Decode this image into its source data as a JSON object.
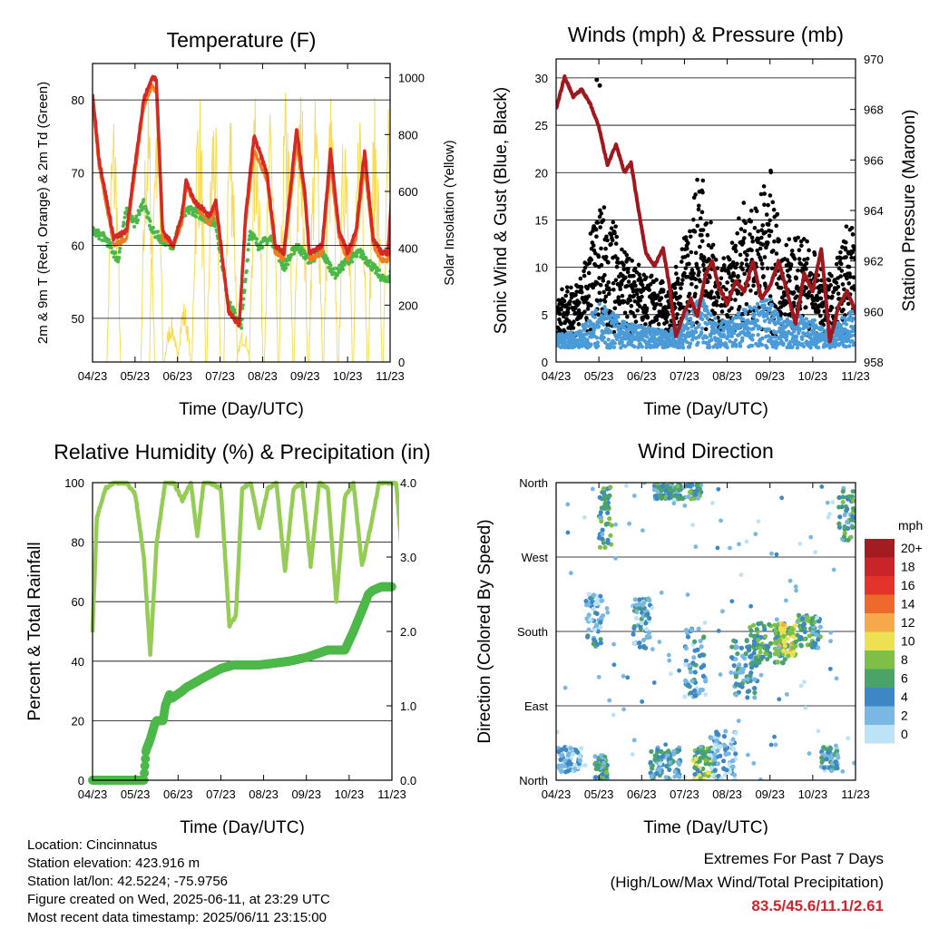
{
  "time_ticks": [
    "04/23",
    "05/23",
    "06/23",
    "07/23",
    "08/23",
    "09/23",
    "10/23",
    "11/23"
  ],
  "time_xlabel": "Time (Day/UTC)",
  "colors": {
    "temp_red": "#d42a26",
    "temp_orange": "#f47c20",
    "dewpoint_green": "#4cb848",
    "solar_yellow": "#f5dc5a",
    "wind_black": "#000000",
    "wind_blue": "#4a9bd8",
    "pressure_maroon": "#a0171e",
    "rh_green": "#95cc55",
    "precip_green": "#4cb848",
    "extremes_red": "#c8282d"
  },
  "chart_data": [
    {
      "id": "temperature",
      "type": "line",
      "title": "Temperature (F)",
      "xlabel": "Time (Day/UTC)",
      "ylabel": "2m & 9m T (Red, Orange) & 2m Td (Green)",
      "y2label": "Solar Insolation (Yellow)",
      "ylim": [
        44,
        85
      ],
      "yticks": [
        50,
        60,
        70,
        80
      ],
      "y2lim": [
        0,
        1050
      ],
      "y2ticks": [
        0,
        200,
        400,
        600,
        800,
        1000
      ],
      "grid": "horizontal",
      "series": [
        {
          "key": "t2m",
          "color": "#d42a26",
          "x": [
            0,
            0.15,
            0.5,
            0.8,
            1.2,
            1.4,
            1.5,
            1.65,
            1.9,
            2.1,
            2.2,
            2.4,
            2.6,
            2.75,
            2.9,
            3.2,
            3.45,
            3.6,
            3.8,
            4.1,
            4.3,
            4.5,
            4.8,
            5.0,
            5.1,
            5.4,
            5.6,
            5.8,
            6.0,
            6.2,
            6.4,
            6.6,
            6.8,
            6.95,
            7.1,
            7.3,
            7.4,
            7.6,
            7.7,
            7.8,
            8.0
          ],
          "y": [
            81,
            72,
            61,
            62,
            80,
            83,
            83,
            62,
            60,
            64,
            69,
            66,
            65,
            64,
            66,
            51,
            49,
            64,
            75,
            70,
            60,
            59,
            76,
            67,
            59,
            60,
            73,
            62,
            59,
            62,
            73,
            61,
            59,
            59,
            73,
            63,
            54,
            46,
            47,
            76,
            74
          ]
        },
        {
          "key": "t9m",
          "color": "#f47c20",
          "x": [
            0,
            0.15,
            0.5,
            0.8,
            1.2,
            1.4,
            1.5,
            1.65,
            1.9,
            2.1,
            2.2,
            2.4,
            2.6,
            2.75,
            2.9,
            3.2,
            3.45,
            3.6,
            3.8,
            4.1,
            4.3,
            4.5,
            4.8,
            5.0,
            5.1,
            5.4,
            5.6,
            5.8,
            6.0,
            6.2,
            6.4,
            6.6,
            6.8,
            6.95,
            7.1,
            7.3,
            7.4,
            7.6,
            7.7,
            7.8,
            8.0
          ],
          "y": [
            80,
            71,
            60,
            61,
            79,
            82,
            81,
            61,
            60,
            63,
            68,
            66,
            64,
            63,
            65,
            51,
            49,
            63,
            73,
            69,
            59,
            58,
            74,
            66,
            58,
            59,
            71,
            61,
            58,
            61,
            71,
            60,
            58,
            58,
            71,
            62,
            53,
            46,
            47,
            74,
            73
          ]
        },
        {
          "key": "td2m",
          "color": "#4cb848",
          "x": [
            0,
            0.3,
            0.6,
            0.8,
            1.0,
            1.2,
            1.4,
            1.6,
            1.9,
            2.1,
            2.3,
            2.6,
            2.9,
            3.2,
            3.5,
            3.7,
            3.9,
            4.2,
            4.5,
            4.8,
            5.1,
            5.4,
            5.7,
            6.0,
            6.3,
            6.6,
            6.9,
            7.2,
            7.4,
            7.6,
            7.8,
            8.0
          ],
          "y": [
            62,
            61,
            58,
            65,
            63,
            66,
            62,
            61,
            60,
            64,
            65,
            64,
            63,
            52,
            49,
            62,
            60,
            61,
            57,
            60,
            58,
            59,
            56,
            58,
            59,
            57,
            55,
            58,
            51,
            46,
            55,
            56
          ]
        },
        {
          "key": "solar",
          "color": "#f5dc5a",
          "axis": "y2",
          "peaks_x": [
            0.5,
            1.3,
            1.5,
            1.85,
            2.15,
            2.5,
            2.85,
            3.25,
            3.55,
            3.85,
            4.2,
            4.55,
            4.9,
            5.25,
            5.6,
            5.95,
            6.3,
            6.65,
            7.0,
            7.35,
            7.7,
            7.9
          ],
          "peaks_y": [
            930,
            980,
            1000,
            160,
            220,
            1000,
            960,
            980,
            120,
            1000,
            920,
            980,
            1000,
            950,
            970,
            990,
            1000,
            940,
            980,
            960,
            1000,
            940
          ]
        }
      ]
    },
    {
      "id": "winds",
      "type": "scatter",
      "title": "Winds (mph) & Pressure (mb)",
      "xlabel": "Time (Day/UTC)",
      "ylabel": "Sonic Wind & Gust (Blue, Black)",
      "y2label": "Station Pressure (Maroon)",
      "ylim": [
        0,
        32
      ],
      "yticks": [
        0,
        5,
        10,
        15,
        20,
        25,
        30
      ],
      "y2lim": [
        958,
        970
      ],
      "y2ticks": [
        958,
        960,
        962,
        964,
        966,
        968,
        970
      ],
      "grid": "horizontal",
      "series": [
        {
          "key": "pressure",
          "color": "#a0171e",
          "axis": "y2",
          "x": [
            0,
            0.2,
            0.4,
            0.6,
            0.8,
            1.0,
            1.2,
            1.4,
            1.6,
            1.75,
            1.9,
            2.1,
            2.3,
            2.5,
            2.65,
            2.8,
            3.0,
            3.15,
            3.3,
            3.5,
            3.65,
            3.8,
            4.0,
            4.2,
            4.4,
            4.6,
            4.8,
            5.0,
            5.2,
            5.4,
            5.6,
            5.8,
            6.0,
            6.2,
            6.4,
            6.6,
            6.8,
            7.0,
            7.2,
            7.4,
            7.6,
            7.75,
            7.9,
            8.0
          ],
          "y": [
            968,
            969.3,
            968.5,
            968.8,
            968.2,
            967.3,
            965.8,
            966.6,
            965.5,
            965.9,
            964.3,
            962.3,
            961.8,
            962.5,
            961.0,
            959.0,
            960.0,
            960.5,
            959.8,
            961.5,
            962.0,
            961.0,
            960.3,
            961.2,
            960.8,
            962.0,
            960.5,
            961.0,
            962.0,
            960.8,
            959.5,
            961.5,
            960.8,
            962.5,
            958.8,
            960.2,
            960.8,
            960.0,
            962.0,
            965.0,
            967.5,
            967.9,
            966.5,
            965.5
          ]
        },
        {
          "key": "gust",
          "color": "#000000",
          "summary": "scattered gust points, peaks near 30 mph on 05/23"
        },
        {
          "key": "wind",
          "color": "#4a9bd8",
          "summary": "sustained wind, mostly 1-8 mph"
        }
      ]
    },
    {
      "id": "humidity_precip",
      "type": "line",
      "title": "Relative Humidity (%) & Precipitation (in)",
      "xlabel": "Time (Day/UTC)",
      "ylabel": "Percent & Total Rainfall",
      "ylim": [
        0,
        100
      ],
      "yticks": [
        0,
        20,
        40,
        60,
        80,
        100
      ],
      "y2lim": [
        0,
        4
      ],
      "y2ticks": [
        "0.0",
        "1.0",
        "2.0",
        "3.0",
        "4.0"
      ],
      "grid": "horizontal",
      "series": [
        {
          "key": "rh",
          "color": "#95cc55",
          "x": [
            0,
            0.1,
            0.3,
            0.5,
            0.8,
            1.0,
            1.2,
            1.35,
            1.5,
            1.7,
            1.9,
            2.1,
            2.3,
            2.45,
            2.6,
            2.75,
            3.0,
            3.2,
            3.35,
            3.5,
            3.7,
            3.9,
            4.1,
            4.3,
            4.5,
            4.7,
            4.9,
            5.1,
            5.3,
            5.5,
            5.7,
            5.9,
            6.1,
            6.3,
            6.5,
            6.7,
            6.9,
            7.1,
            7.3,
            7.5,
            7.7,
            7.85,
            8.0
          ],
          "y": [
            50,
            88,
            98,
            100,
            100,
            96,
            75,
            42,
            80,
            100,
            100,
            94,
            100,
            82,
            100,
            100,
            98,
            52,
            55,
            98,
            100,
            85,
            98,
            100,
            70,
            98,
            100,
            72,
            100,
            98,
            60,
            95,
            100,
            72,
            85,
            100,
            100,
            100,
            65,
            100,
            62,
            48,
            56
          ]
        },
        {
          "key": "precip",
          "color": "#4cb848",
          "axis": "y2",
          "x": [
            0,
            1.2,
            1.25,
            1.35,
            1.45,
            1.5,
            1.65,
            1.7,
            1.8,
            1.85,
            2.1,
            2.2,
            2.3,
            2.6,
            3.0,
            3.3,
            3.6,
            3.9,
            4.2,
            4.6,
            5.0,
            5.5,
            5.9,
            6.1,
            6.35,
            6.45,
            6.55,
            6.75,
            7.1,
            7.5,
            8.0
          ],
          "y": [
            0,
            0,
            0.4,
            0.55,
            0.75,
            0.8,
            0.8,
            1.0,
            1.15,
            1.1,
            1.2,
            1.25,
            1.28,
            1.38,
            1.5,
            1.55,
            1.55,
            1.55,
            1.57,
            1.6,
            1.65,
            1.75,
            1.75,
            2.0,
            2.35,
            2.5,
            2.55,
            2.6,
            2.6,
            2.61,
            2.61
          ]
        }
      ]
    },
    {
      "id": "wind_direction",
      "type": "scatter",
      "title": "Wind Direction",
      "xlabel": "Time (Day/UTC)",
      "ylabel": "Direction (Colored By Speed)",
      "ylim": [
        0,
        360
      ],
      "ytick_labels": [
        "North",
        "East",
        "South",
        "West",
        "North"
      ],
      "yticks": [
        0,
        90,
        180,
        270,
        360
      ],
      "grid": "horizontal",
      "clusters": [
        {
          "x0": 0.05,
          "x1": 0.6,
          "dir0": 10,
          "dir1": 40,
          "speed": 2
        },
        {
          "x0": 0.7,
          "x1": 1.1,
          "dir0": 160,
          "dir1": 230,
          "speed": 3
        },
        {
          "x0": 0.9,
          "x1": 1.2,
          "dir0": 0,
          "dir1": 30,
          "speed": 5
        },
        {
          "x0": 1.0,
          "x1": 1.3,
          "dir0": 280,
          "dir1": 355,
          "speed": 6
        },
        {
          "x0": 1.8,
          "x1": 2.2,
          "dir0": 160,
          "dir1": 220,
          "speed": 3
        },
        {
          "x0": 2.2,
          "x1": 2.9,
          "dir0": 0,
          "dir1": 40,
          "speed": 4
        },
        {
          "x0": 2.3,
          "x1": 3.4,
          "dir0": 340,
          "dir1": 360,
          "speed": 5
        },
        {
          "x0": 3.0,
          "x1": 3.5,
          "dir0": 100,
          "dir1": 190,
          "speed": 3
        },
        {
          "x0": 3.2,
          "x1": 3.7,
          "dir0": 0,
          "dir1": 40,
          "speed": 7
        },
        {
          "x0": 3.6,
          "x1": 4.2,
          "dir0": 0,
          "dir1": 60,
          "speed": 2
        },
        {
          "x0": 4.1,
          "x1": 4.7,
          "dir0": 100,
          "dir1": 170,
          "speed": 4
        },
        {
          "x0": 4.5,
          "x1": 5.4,
          "dir0": 140,
          "dir1": 190,
          "speed": 6
        },
        {
          "x0": 5.2,
          "x1": 5.6,
          "dir0": 150,
          "dir1": 190,
          "speed": 9
        },
        {
          "x0": 5.6,
          "x1": 6.2,
          "dir0": 160,
          "dir1": 200,
          "speed": 5
        },
        {
          "x0": 6.2,
          "x1": 6.6,
          "dir0": 10,
          "dir1": 40,
          "speed": 3
        },
        {
          "x0": 6.6,
          "x1": 7.0,
          "dir0": 290,
          "dir1": 355,
          "speed": 5
        },
        {
          "x0": 7.2,
          "x1": 7.9,
          "dir0": 190,
          "dir1": 320,
          "speed": 6
        }
      ],
      "legend": {
        "title": "mph",
        "labels": [
          "20+",
          "18",
          "16",
          "14",
          "12",
          "10",
          "8",
          "6",
          "4",
          "2",
          "0"
        ],
        "colors": [
          "#a31c22",
          "#c9242a",
          "#e3332a",
          "#ee6a2c",
          "#f6a94a",
          "#ece053",
          "#7ec047",
          "#4aa46a",
          "#3d88c4",
          "#7ab8e3",
          "#bde3f6"
        ]
      }
    }
  ],
  "meta": {
    "location": "Location: Cincinnatus",
    "elevation": "Station elevation: 423.916 m",
    "latlon": "Station lat/lon: 42.5224; -75.9756",
    "created": "Figure created on Wed, 2025-06-11, at 23:29 UTC",
    "latest": "Most recent data timestamp: 2025/06/11 23:15:00"
  },
  "extremes": {
    "title": "Extremes For Past 7 Days",
    "subtitle": "(High/Low/Max Wind/Total Precipitation)",
    "values": "83.5/45.6/11.1/2.61"
  }
}
